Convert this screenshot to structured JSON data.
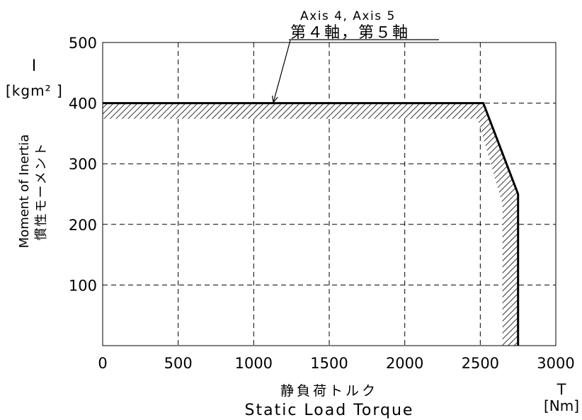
{
  "chart_data": {
    "type": "line",
    "title": "",
    "xlabel_jp": "静負荷トルク",
    "xlabel_en": "Static Load Torque",
    "x_symbol": "T",
    "x_unit": "[Nm]",
    "ylabel_en": "Moment of Inertia",
    "ylabel_jp": "慣性モーメント",
    "y_symbol": "I",
    "y_unit": "[kgm² ]",
    "xlim": [
      0,
      3000
    ],
    "ylim": [
      0,
      500
    ],
    "x_ticks": [
      0,
      500,
      1000,
      1500,
      2000,
      2500,
      3000
    ],
    "y_ticks": [
      100,
      200,
      300,
      400,
      500
    ],
    "grid": true,
    "series": [
      {
        "x": [
          0,
          2520,
          2750,
          2750
        ],
        "y": [
          400,
          400,
          250,
          0
        ]
      }
    ],
    "annotation": {
      "text_en": "Axis 4, Axis 5",
      "text_jp": "第４軸，第５軸",
      "point": {
        "x": 1130,
        "y": 400
      }
    }
  }
}
